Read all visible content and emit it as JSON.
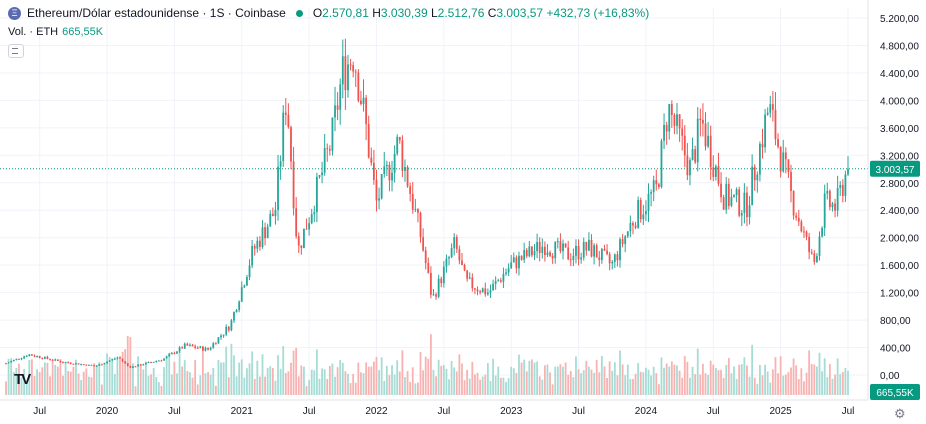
{
  "legend": {
    "symbol": "Ethereum/Dólar estadounidense · 1S · Coinbase",
    "coin_glyph": "Ξ",
    "open_key": "O",
    "open": "2.570,81",
    "high_key": "H",
    "high": "3.030,39",
    "low_key": "L",
    "low": "2.512,76",
    "close_key": "C",
    "close": "3.003,57",
    "change": "+432,73 (+16,83%)",
    "vol_label": "Vol. · ETH",
    "vol_value": "665,55K"
  },
  "logo_text": "TV",
  "settings_icon": "gear-icon",
  "colors": {
    "up": "#26a69a",
    "down": "#ef5350",
    "up_vol": "#a7dcd5",
    "down_vol": "#f7b3b1",
    "last": "#089981"
  },
  "chart_data": {
    "type": "candlestick",
    "price_axis": {
      "ticks": [
        "5.200,00",
        "4.800,00",
        "4.400,00",
        "4.000,00",
        "3.600,00",
        "3.200,00",
        "2.800,00",
        "2.400,00",
        "2.000,00",
        "1.600,00",
        "1.200,00",
        "800,00",
        "400,00",
        "0,00"
      ],
      "range": [
        0,
        5200
      ]
    },
    "last_price": {
      "value": 3003.57,
      "label": "3.003,57"
    },
    "volume_last": {
      "label": "665,55K"
    },
    "time_axis": [
      "Jul",
      "2020",
      "Jul",
      "2021",
      "Jul",
      "2022",
      "Jul",
      "2023",
      "Jul",
      "2024",
      "Jul",
      "2025",
      "Jul"
    ],
    "time_range": [
      "2019-04",
      "2025-07"
    ],
    "anchors": [
      [
        "2019-04",
        170
      ],
      [
        "2019-06",
        300
      ],
      [
        "2019-09",
        190
      ],
      [
        "2019-12",
        130
      ],
      [
        "2020-02",
        260
      ],
      [
        "2020-03",
        110
      ],
      [
        "2020-06",
        230
      ],
      [
        "2020-08",
        430
      ],
      [
        "2020-10",
        370
      ],
      [
        "2020-12",
        730
      ],
      [
        "2021-02",
        1800
      ],
      [
        "2021-04",
        2400
      ],
      [
        "2021-05",
        4100
      ],
      [
        "2021-06",
        1800
      ],
      [
        "2021-07",
        2300
      ],
      [
        "2021-09",
        3400
      ],
      [
        "2021-10",
        4400
      ],
      [
        "2021-11",
        4700
      ],
      [
        "2021-12",
        3700
      ],
      [
        "2022-01",
        2500
      ],
      [
        "2022-03",
        3400
      ],
      [
        "2022-05",
        2000
      ],
      [
        "2022-06",
        1100
      ],
      [
        "2022-08",
        1900
      ],
      [
        "2022-09",
        1350
      ],
      [
        "2022-11",
        1200
      ],
      [
        "2023-01",
        1600
      ],
      [
        "2023-04",
        1900
      ],
      [
        "2023-06",
        1750
      ],
      [
        "2023-08",
        1850
      ],
      [
        "2023-10",
        1600
      ],
      [
        "2023-12",
        2300
      ],
      [
        "2024-02",
        2700
      ],
      [
        "2024-03",
        3900
      ],
      [
        "2024-05",
        3000
      ],
      [
        "2024-06",
        3700
      ],
      [
        "2024-08",
        2600
      ],
      [
        "2024-10",
        2450
      ],
      [
        "2024-12",
        3900
      ],
      [
        "2025-02",
        2600
      ],
      [
        "2025-04",
        1600
      ],
      [
        "2025-05",
        2500
      ],
      [
        "2025-06",
        2450
      ],
      [
        "2025-07",
        3003
      ]
    ]
  }
}
